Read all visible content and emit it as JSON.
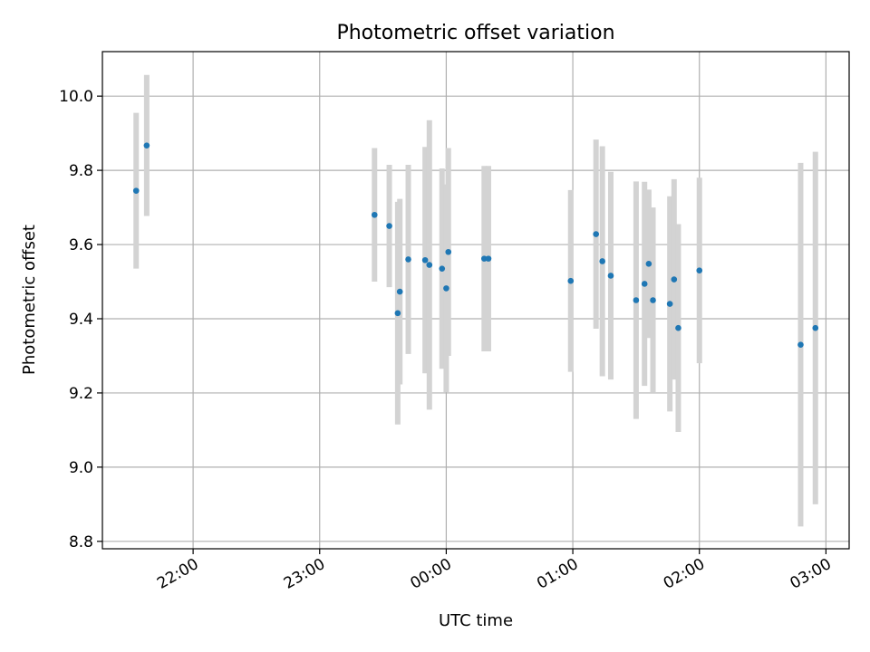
{
  "chart_data": {
    "type": "scatter",
    "title": "Photometric offset variation",
    "xlabel": "UTC time",
    "ylabel": "Photometric offset",
    "x_ticks": [
      "22:00",
      "23:00",
      "00:00",
      "01:00",
      "02:00",
      "03:00"
    ],
    "y_ticks": [
      "8.8",
      "9.0",
      "9.2",
      "9.4",
      "9.6",
      "9.8",
      "10.0"
    ],
    "xlim": [
      "21:17",
      "03:11"
    ],
    "ylim": [
      8.78,
      10.12
    ],
    "grid": true,
    "legend": "none",
    "point_color": "#1f77b4",
    "errorbar_color": "#d3d3d3",
    "series": [
      {
        "points": [
          {
            "x": "21:33",
            "y": 9.745,
            "err": 0.21
          },
          {
            "x": "21:38",
            "y": 9.867,
            "err": 0.19
          },
          {
            "x": "23:26",
            "y": 9.68,
            "err": 0.18
          },
          {
            "x": "23:33",
            "y": 9.65,
            "err": 0.165
          },
          {
            "x": "23:37",
            "y": 9.415,
            "err": 0.3
          },
          {
            "x": "23:38",
            "y": 9.473,
            "err": 0.25
          },
          {
            "x": "23:42",
            "y": 9.56,
            "err": 0.255
          },
          {
            "x": "23:50",
            "y": 9.558,
            "err": 0.305
          },
          {
            "x": "23:52",
            "y": 9.545,
            "err": 0.39
          },
          {
            "x": "23:58",
            "y": 9.535,
            "err": 0.27
          },
          {
            "x": "00:00",
            "y": 9.482,
            "err": 0.28
          },
          {
            "x": "00:01",
            "y": 9.58,
            "err": 0.28
          },
          {
            "x": "00:18",
            "y": 9.562,
            "err": 0.25
          },
          {
            "x": "00:20",
            "y": 9.562,
            "err": 0.25
          },
          {
            "x": "00:59",
            "y": 9.502,
            "err": 0.245
          },
          {
            "x": "01:11",
            "y": 9.628,
            "err": 0.255
          },
          {
            "x": "01:14",
            "y": 9.555,
            "err": 0.31
          },
          {
            "x": "01:18",
            "y": 9.516,
            "err": 0.28
          },
          {
            "x": "01:30",
            "y": 9.45,
            "err": 0.32
          },
          {
            "x": "01:34",
            "y": 9.494,
            "err": 0.275
          },
          {
            "x": "01:36",
            "y": 9.548,
            "err": 0.2
          },
          {
            "x": "01:38",
            "y": 9.45,
            "err": 0.25
          },
          {
            "x": "01:46",
            "y": 9.44,
            "err": 0.29
          },
          {
            "x": "01:48",
            "y": 9.506,
            "err": 0.27
          },
          {
            "x": "01:50",
            "y": 9.375,
            "err": 0.28
          },
          {
            "x": "02:00",
            "y": 9.53,
            "err": 0.25
          },
          {
            "x": "02:48",
            "y": 9.33,
            "err": 0.49
          },
          {
            "x": "02:55",
            "y": 9.375,
            "err": 0.475
          }
        ]
      }
    ]
  }
}
